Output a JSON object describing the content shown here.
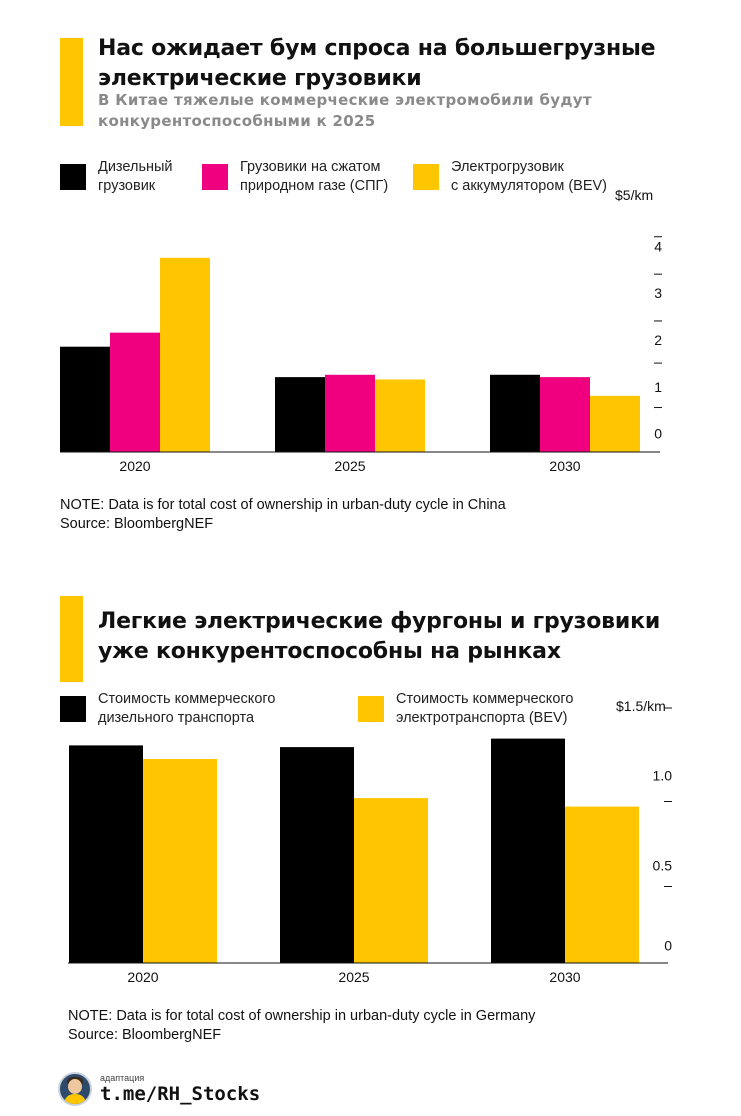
{
  "chart_data": [
    {
      "type": "bar",
      "title": "Нас ожидает бум спроса на большегрузные электрические грузовики",
      "subtitle": "В Китае тяжелые коммерческие электромобили будут конкурентоспособными к 2025",
      "categories": [
        "2020",
        "2025",
        "2030"
      ],
      "series": [
        {
          "name": "Дизельный\nгрузовик",
          "color": "#000000",
          "values": [
            2.25,
            1.6,
            1.65
          ]
        },
        {
          "name": "Грузовики на сжатом\nприродном газе (СПГ)",
          "color": "#f0007f",
          "values": [
            2.55,
            1.65,
            1.6
          ]
        },
        {
          "name": "Электрогрузовик\nс аккумулятором (BEV)",
          "color": "#ffc600",
          "values": [
            4.15,
            1.55,
            1.2
          ]
        }
      ],
      "y_axis": {
        "unit_label": "$5/km",
        "ticks": [
          "4",
          "3",
          "2",
          "1",
          "0"
        ],
        "ylim": [
          0,
          5
        ],
        "position": "right"
      },
      "legend": "top",
      "grid": false,
      "note": "NOTE: Data is for total cost of ownership in urban-duty cycle in China",
      "source": "Source: BloombergNEF"
    },
    {
      "type": "bar",
      "title": "Легкие электрические фургоны и грузовики уже конкурентоспособны на рынках",
      "categories": [
        "2020",
        "2025",
        "2030"
      ],
      "series": [
        {
          "name": "Стоимость коммерческого\nдизельного транспорта",
          "color": "#000000",
          "values": [
            1.28,
            1.27,
            1.32
          ]
        },
        {
          "name": "Стоимость коммерческого\nэлектротранспорта (BEV)",
          "color": "#ffc600",
          "values": [
            1.2,
            0.97,
            0.92
          ]
        }
      ],
      "y_axis": {
        "unit_label": "$1.5/km",
        "ticks": [
          "1.0",
          "0.5",
          "0"
        ],
        "ylim": [
          0,
          1.5
        ],
        "position": "right"
      },
      "legend": "top",
      "grid": false,
      "note": "NOTE: Data is for total cost of ownership in urban-duty cycle in Germany",
      "source": "Source: BloombergNEF"
    }
  ],
  "footer": {
    "label": "адаптация",
    "handle": "t.me/RH_Stocks"
  }
}
